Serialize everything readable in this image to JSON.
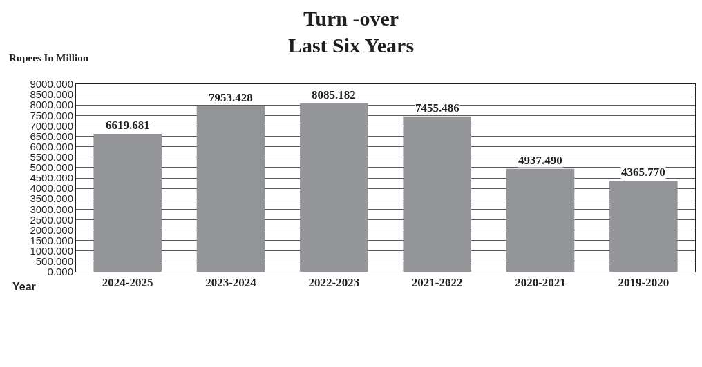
{
  "chart_data": {
    "type": "bar",
    "title": "Turn -over\nLast Six Years",
    "ylabel": "Rupees In Million",
    "xlabel": "Year",
    "categories": [
      "2024-2025",
      "2023-2024",
      "2022-2023",
      "2021-2022",
      "2020-2021",
      "2019-2020"
    ],
    "values": [
      6619.681,
      7953.428,
      8085.182,
      7455.486,
      4937.49,
      4365.77
    ],
    "value_labels": [
      "6619.681",
      "7953.428",
      "8085.182",
      "7455.486",
      "4937.490",
      "4365.770"
    ],
    "color": "#939598",
    "ylim": [
      0,
      9000
    ],
    "yticks": [
      {
        "value": 0,
        "label": "0.000"
      },
      {
        "value": 500,
        "label": "500.000"
      },
      {
        "value": 1000,
        "label": "1000.000"
      },
      {
        "value": 1500,
        "label": "1500.000"
      },
      {
        "value": 2000,
        "label": "2000.000"
      },
      {
        "value": 2500,
        "label": "2500.000"
      },
      {
        "value": 3000,
        "label": "3000.000"
      },
      {
        "value": 3500,
        "label": "3500.000"
      },
      {
        "value": 4000,
        "label": "4000.000"
      },
      {
        "value": 4500,
        "label": "4500.000"
      },
      {
        "value": 5000,
        "label": "5000.000"
      },
      {
        "value": 5500,
        "label": "5500.000"
      },
      {
        "value": 6000,
        "label": "6000.000"
      },
      {
        "value": 6500,
        "label": "6500.000"
      },
      {
        "value": 7000,
        "label": "7000.000"
      },
      {
        "value": 7500,
        "label": "7500.000"
      },
      {
        "value": 8000,
        "label": "8000.000"
      },
      {
        "value": 8500,
        "label": "8500.000"
      },
      {
        "value": 9000,
        "label": "9000.000"
      }
    ],
    "grid": "y",
    "legend": false
  }
}
